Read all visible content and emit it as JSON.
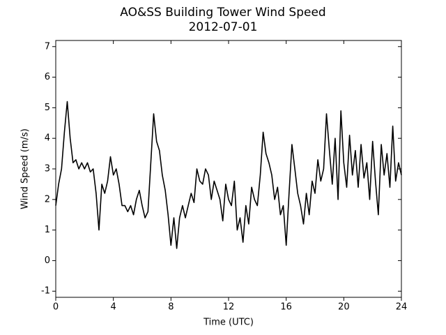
{
  "chart_data": {
    "type": "line",
    "title": "AO&SS Building Tower Wind Speed",
    "subtitle": "2012-07-01",
    "x_label": "Time (UTC)",
    "y_label": "Wind Speed (m/s)",
    "xlim": [
      0,
      24
    ],
    "xticks": [
      0,
      4,
      8,
      12,
      16,
      20,
      24
    ],
    "ylim": [
      -1.2,
      7.2
    ],
    "yticks": [
      -1,
      0,
      1,
      2,
      3,
      4,
      5,
      6,
      7
    ],
    "grid": false,
    "x": [
      0,
      0.2,
      0.4,
      0.6,
      0.8,
      1,
      1.2,
      1.4,
      1.6,
      1.8,
      2,
      2.2,
      2.4,
      2.6,
      2.8,
      3,
      3.2,
      3.4,
      3.6,
      3.8,
      4,
      4.2,
      4.4,
      4.6,
      4.8,
      5,
      5.2,
      5.4,
      5.6,
      5.8,
      6,
      6.2,
      6.4,
      6.6,
      6.8,
      7,
      7.2,
      7.4,
      7.6,
      7.8,
      8,
      8.2,
      8.4,
      8.6,
      8.8,
      9,
      9.2,
      9.4,
      9.6,
      9.8,
      10,
      10.2,
      10.4,
      10.6,
      10.8,
      11,
      11.2,
      11.4,
      11.6,
      11.8,
      12,
      12.2,
      12.4,
      12.6,
      12.8,
      13,
      13.2,
      13.4,
      13.6,
      13.8,
      14,
      14.2,
      14.4,
      14.6,
      14.8,
      15,
      15.2,
      15.4,
      15.6,
      15.8,
      16,
      16.2,
      16.4,
      16.6,
      16.8,
      17,
      17.2,
      17.4,
      17.6,
      17.8,
      18,
      18.2,
      18.4,
      18.6,
      18.8,
      19,
      19.2,
      19.4,
      19.6,
      19.8,
      20,
      20.2,
      20.4,
      20.6,
      20.8,
      21,
      21.2,
      21.4,
      21.6,
      21.8,
      22,
      22.2,
      22.4,
      22.6,
      22.8,
      23,
      23.2,
      23.4,
      23.6,
      23.8,
      24
    ],
    "series": [
      {
        "color": "#000000",
        "values": [
          1.8,
          2.5,
          3.0,
          4.2,
          5.2,
          4.0,
          3.2,
          3.3,
          3.0,
          3.2,
          3.0,
          3.2,
          2.9,
          3.0,
          2.2,
          1.0,
          2.5,
          2.2,
          2.6,
          3.4,
          2.8,
          3.0,
          2.5,
          1.8,
          1.8,
          1.6,
          1.8,
          1.5,
          2.0,
          2.3,
          1.8,
          1.4,
          1.6,
          3.2,
          4.8,
          3.9,
          3.6,
          2.8,
          2.3,
          1.5,
          0.5,
          1.4,
          0.4,
          1.4,
          1.8,
          1.4,
          1.8,
          2.2,
          1.9,
          3.0,
          2.6,
          2.5,
          3.0,
          2.8,
          2.0,
          2.6,
          2.3,
          2.0,
          1.3,
          2.5,
          2.0,
          1.8,
          2.6,
          1.0,
          1.4,
          0.6,
          1.8,
          1.2,
          2.4,
          2.0,
          1.8,
          2.8,
          4.2,
          3.5,
          3.2,
          2.8,
          2.0,
          2.4,
          1.5,
          1.8,
          0.5,
          2.2,
          3.8,
          3.0,
          2.2,
          1.8,
          1.2,
          2.2,
          1.5,
          2.6,
          2.2,
          3.3,
          2.6,
          3.0,
          4.8,
          3.6,
          2.5,
          4.0,
          2.0,
          4.9,
          3.2,
          2.4,
          4.1,
          2.8,
          3.6,
          2.4,
          3.8,
          2.7,
          3.2,
          2.0,
          3.9,
          2.6,
          1.5,
          3.8,
          2.8,
          3.5,
          2.4,
          4.4,
          2.6,
          3.2,
          2.8
        ]
      }
    ]
  }
}
